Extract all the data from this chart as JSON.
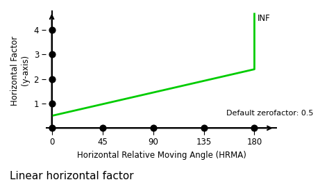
{
  "title": "Linear horizontal factor",
  "ylabel": "Horizontal Factor\n(y-axis)",
  "xlabel": "Horizontal Relative Moving Angle (HRMA)",
  "x_ticks": [
    0,
    45,
    90,
    135,
    180
  ],
  "y_ticks": [
    1,
    2,
    3,
    4
  ],
  "xlim": [
    -5,
    200
  ],
  "ylim": [
    -0.1,
    4.8
  ],
  "line_x": [
    0,
    180,
    180
  ],
  "line_y": [
    0.5,
    2.4,
    4.7
  ],
  "line_color": "#00cc00",
  "line_width": 2.0,
  "dot_x": [
    0,
    0,
    0,
    0,
    0,
    45,
    90,
    135,
    180
  ],
  "dot_y": [
    0,
    1,
    2,
    3,
    4,
    0,
    0,
    0,
    0
  ],
  "dot_color": "black",
  "dot_size": 40,
  "inf_label": "INF",
  "inf_x": 183,
  "inf_y": 4.65,
  "zerofactor_label": "Default zerofactor: 0.5",
  "zerofactor_x": 155,
  "zerofactor_y": 0.6,
  "background_color": "#ffffff",
  "axis_color": "black",
  "title_fontsize": 11,
  "label_fontsize": 8.5,
  "tick_fontsize": 8.5
}
